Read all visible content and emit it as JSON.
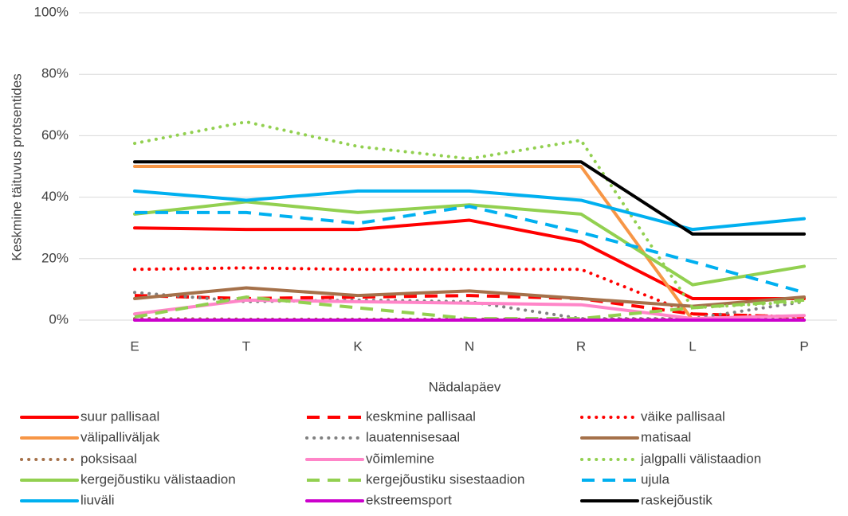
{
  "chart_data": {
    "type": "line",
    "x_label": "Nädalapäev",
    "y_label": "Keskmine täituvus protsentides",
    "categories": [
      "E",
      "T",
      "K",
      "N",
      "R",
      "L",
      "P"
    ],
    "ylim": [
      0,
      100
    ],
    "yticks": [
      {
        "value": 0,
        "label": "0%"
      },
      {
        "value": 20,
        "label": "20%"
      },
      {
        "value": 40,
        "label": "40%"
      },
      {
        "value": 60,
        "label": "60%"
      },
      {
        "value": 80,
        "label": "80%"
      },
      {
        "value": 100,
        "label": "100%"
      }
    ],
    "grid": true,
    "legend": "bottom",
    "series": [
      {
        "name": "suur pallisaal",
        "color": "#ff0000",
        "style": "solid",
        "values": [
          30,
          29.5,
          29.5,
          32.5,
          25.5,
          7,
          7
        ]
      },
      {
        "name": "keskmine pallisaal",
        "color": "#ff0000",
        "style": "dash",
        "values": [
          8,
          7,
          7.5,
          8,
          7,
          2,
          1
        ]
      },
      {
        "name": "väike pallisaal",
        "color": "#ff0000",
        "style": "dot",
        "values": [
          16.5,
          17,
          16.5,
          16.5,
          16.5,
          2,
          1
        ]
      },
      {
        "name": "välipalliväljak",
        "color": "#f79646",
        "style": "solid",
        "values": [
          50,
          50,
          50,
          50,
          50,
          0,
          0
        ]
      },
      {
        "name": "lauatennisesaal",
        "color": "#808080",
        "style": "dot",
        "values": [
          9,
          6,
          6.5,
          6,
          0.5,
          0.5,
          6
        ]
      },
      {
        "name": "matisaal",
        "color": "#a5714a",
        "style": "solid",
        "values": [
          7,
          10.5,
          8,
          9.5,
          7,
          4.5,
          7.5
        ]
      },
      {
        "name": "poksisaal",
        "color": "#a5714a",
        "style": "dot",
        "values": [
          0.5,
          0.3,
          0.3,
          0.3,
          0.3,
          0.3,
          0.3
        ]
      },
      {
        "name": "võimlemine",
        "color": "#ff85c8",
        "style": "solid",
        "values": [
          2,
          6.5,
          6,
          5.5,
          5,
          0.5,
          1.5
        ]
      },
      {
        "name": "jalgpalli välistaadion",
        "color": "#92d050",
        "style": "dot",
        "values": [
          57.5,
          64.5,
          56.5,
          52.5,
          58.5,
          4,
          6
        ]
      },
      {
        "name": "kergejõustiku välistaadion",
        "color": "#92d050",
        "style": "solid",
        "values": [
          34.5,
          38.5,
          35,
          37.5,
          34.5,
          11.5,
          17.5
        ]
      },
      {
        "name": "kergejõustiku sisestaadion",
        "color": "#92d050",
        "style": "dash",
        "values": [
          1,
          7.5,
          4,
          0.5,
          0.5,
          4,
          6.5
        ]
      },
      {
        "name": "ujula",
        "color": "#00b0f0",
        "style": "dash",
        "values": [
          35,
          35,
          31.5,
          37,
          28.5,
          19,
          9
        ]
      },
      {
        "name": "liuväli",
        "color": "#00b0f0",
        "style": "solid",
        "values": [
          42,
          39,
          42,
          42,
          39,
          29.5,
          33
        ]
      },
      {
        "name": "ekstreemsport",
        "color": "#cc00cc",
        "style": "solid",
        "values": [
          0,
          0,
          0,
          0,
          0,
          0,
          0
        ]
      },
      {
        "name": "raskejõustik",
        "color": "#000000",
        "style": "solid",
        "values": [
          51.5,
          51.5,
          51.5,
          51.5,
          51.5,
          28,
          28
        ]
      }
    ]
  }
}
